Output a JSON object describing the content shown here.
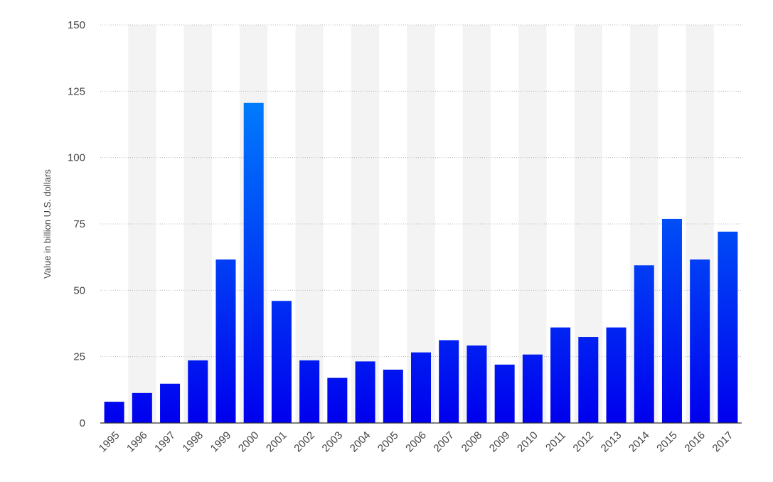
{
  "chart_data": {
    "type": "bar",
    "title": "",
    "xlabel": "",
    "ylabel": "Value in billion U.S. dollars",
    "ylim": [
      0,
      150
    ],
    "yticks": [
      0,
      25,
      50,
      75,
      100,
      125,
      150
    ],
    "grid": true,
    "legend": "none",
    "categories": [
      "1995",
      "1996",
      "1997",
      "1998",
      "1999",
      "2000",
      "2001",
      "2002",
      "2003",
      "2004",
      "2005",
      "2006",
      "2007",
      "2008",
      "2009",
      "2010",
      "2011",
      "2012",
      "2013",
      "2014",
      "2015",
      "2016",
      "2017"
    ],
    "values": [
      8,
      11.3,
      14.8,
      23.6,
      61.6,
      120.6,
      46,
      23.6,
      17,
      23.2,
      20.1,
      26.6,
      31.2,
      29.2,
      22,
      25.8,
      36,
      32.4,
      36,
      59.4,
      76.9,
      61.6,
      72.1
    ],
    "colors": {
      "bar_top": "#0099ff",
      "bar_bottom": "#0000ee",
      "band": "#f3f3f3",
      "grid": "#bcbcbc",
      "text": "#444444"
    }
  }
}
